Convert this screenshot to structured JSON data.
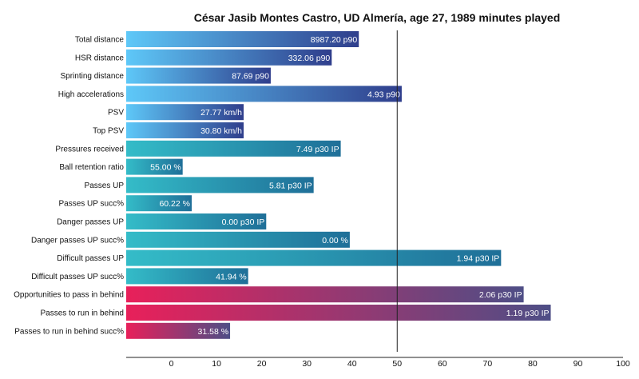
{
  "chart_data": {
    "type": "bar",
    "orientation": "horizontal",
    "title": "César Jasib Montes Castro, UD Almería, age 27, 1989 minutes played",
    "xlim": [
      -10,
      100
    ],
    "xticks": [
      0,
      10,
      20,
      30,
      40,
      50,
      60,
      70,
      80,
      90,
      100
    ],
    "reference_line": 50,
    "grid": false,
    "color_groups": {
      "physical": [
        "#5ec8f8",
        "#2f3e8c"
      ],
      "possession": [
        "#34bcc8",
        "#1f6f98"
      ],
      "in_behind": [
        "#e8205a",
        "#4e4e86"
      ]
    },
    "bars": [
      {
        "category": "Total distance",
        "value": 41.5,
        "label": "8987.20 p90",
        "group": "physical"
      },
      {
        "category": "HSR distance",
        "value": 35.5,
        "label": "332.06 p90",
        "group": "physical"
      },
      {
        "category": "Sprinting distance",
        "value": 22,
        "label": "87.69 p90",
        "group": "physical"
      },
      {
        "category": "High accelerations",
        "value": 51,
        "label": "4.93 p90",
        "group": "physical"
      },
      {
        "category": "PSV",
        "value": 16,
        "label": "27.77 km/h",
        "group": "physical"
      },
      {
        "category": "Top PSV",
        "value": 16,
        "label": "30.80 km/h",
        "group": "physical"
      },
      {
        "category": "Pressures received",
        "value": 37.5,
        "label": "7.49 p30 IP",
        "group": "possession"
      },
      {
        "category": "Ball retention ratio",
        "value": 2.5,
        "label": "55.00 %",
        "group": "possession"
      },
      {
        "category": "Passes UP",
        "value": 31.5,
        "label": "5.81 p30 IP",
        "group": "possession"
      },
      {
        "category": "Passes UP succ%",
        "value": 4.5,
        "label": "60.22 %",
        "group": "possession"
      },
      {
        "category": "Danger passes UP",
        "value": 21,
        "label": "0.00 p30 IP",
        "group": "possession"
      },
      {
        "category": "Danger passes UP succ%",
        "value": 39.5,
        "label": "0.00 %",
        "group": "possession"
      },
      {
        "category": "Difficult passes UP",
        "value": 73,
        "label": "1.94 p30 IP",
        "group": "possession"
      },
      {
        "category": "Difficult passes UP succ%",
        "value": 17,
        "label": "41.94 %",
        "group": "possession"
      },
      {
        "category": "Opportunities to pass in behind",
        "value": 78,
        "label": "2.06 p30 IP",
        "group": "in_behind"
      },
      {
        "category": "Passes to run in behind",
        "value": 84,
        "label": "1.19 p30 IP",
        "group": "in_behind"
      },
      {
        "category": "Passes to run in behind succ%",
        "value": 13,
        "label": "31.58 %",
        "group": "in_behind"
      }
    ]
  }
}
